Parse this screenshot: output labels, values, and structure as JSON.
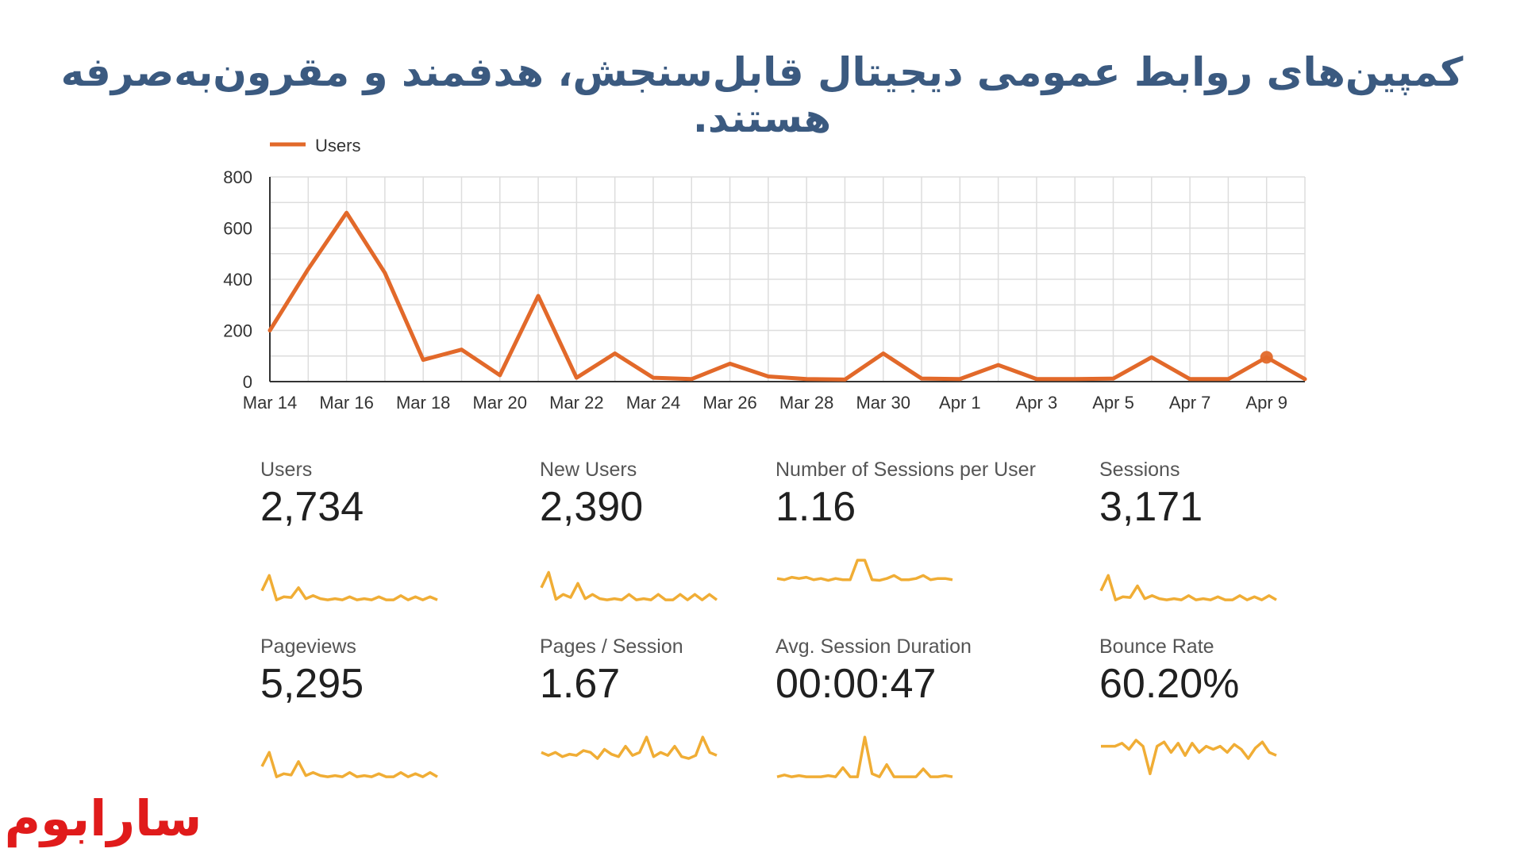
{
  "headline": "کمپین‌های روابط عمومی دیجیتال قابل‌سنجش، هدفمند و مقرون‌به‌صرفه هستند.",
  "logo": {
    "text": "سارابوم",
    "color": "#e01b1b"
  },
  "colors": {
    "line": "#e2692a",
    "sparkline": "#f0ad35",
    "headline": "#3b5a80",
    "grid": "#dddddd",
    "axis": "#333333"
  },
  "chart_data": {
    "type": "line",
    "legend": {
      "position": "top-left",
      "entries": [
        "Users"
      ]
    },
    "grid": true,
    "ylim": [
      0,
      800
    ],
    "yticks": [
      0,
      200,
      400,
      600,
      800
    ],
    "x": [
      "Mar 14",
      "Mar 15",
      "Mar 16",
      "Mar 17",
      "Mar 18",
      "Mar 19",
      "Mar 20",
      "Mar 21",
      "Mar 22",
      "Mar 23",
      "Mar 24",
      "Mar 25",
      "Mar 26",
      "Mar 27",
      "Mar 28",
      "Mar 29",
      "Mar 30",
      "Mar 31",
      "Apr 1",
      "Apr 2",
      "Apr 3",
      "Apr 4",
      "Apr 5",
      "Apr 6",
      "Apr 7",
      "Apr 8",
      "Apr 9",
      "Apr 10"
    ],
    "xtick_labels": [
      "Mar 14",
      "Mar 16",
      "Mar 18",
      "Mar 20",
      "Mar 22",
      "Mar 24",
      "Mar 26",
      "Mar 28",
      "Mar 30",
      "Apr 1",
      "Apr 3",
      "Apr 5",
      "Apr 7",
      "Apr 9"
    ],
    "series": [
      {
        "name": "Users",
        "values": [
          200,
          440,
          660,
          425,
          85,
          125,
          25,
          335,
          15,
          110,
          15,
          10,
          70,
          20,
          10,
          8,
          110,
          12,
          10,
          65,
          10,
          10,
          12,
          95,
          10,
          10,
          95,
          10
        ]
      }
    ],
    "highlight_point": {
      "x": "Apr 9",
      "y": 95
    }
  },
  "metrics": [
    {
      "label": "Users",
      "value": "2,734",
      "spark": [
        0.8,
        0.55,
        0.95,
        0.9,
        0.91,
        0.75,
        0.93,
        0.88,
        0.93,
        0.95,
        0.93,
        0.95,
        0.9,
        0.95,
        0.93,
        0.95,
        0.9,
        0.95,
        0.95,
        0.88,
        0.95,
        0.9,
        0.95,
        0.9,
        0.95
      ]
    },
    {
      "label": "New Users",
      "value": "2,390",
      "spark": [
        0.75,
        0.5,
        0.94,
        0.86,
        0.91,
        0.68,
        0.93,
        0.86,
        0.93,
        0.95,
        0.93,
        0.95,
        0.86,
        0.95,
        0.93,
        0.95,
        0.86,
        0.95,
        0.95,
        0.86,
        0.95,
        0.86,
        0.95,
        0.86,
        0.95
      ]
    },
    {
      "label": "Number of Sessions per User",
      "value": "1.16",
      "spark": [
        0.6,
        0.62,
        0.58,
        0.6,
        0.58,
        0.62,
        0.6,
        0.63,
        0.6,
        0.62,
        0.62,
        0.3,
        0.3,
        0.62,
        0.63,
        0.6,
        0.55,
        0.62,
        0.62,
        0.6,
        0.55,
        0.62,
        0.6,
        0.6,
        0.62
      ]
    },
    {
      "label": "Sessions",
      "value": "3,171",
      "spark": [
        0.8,
        0.55,
        0.95,
        0.9,
        0.91,
        0.72,
        0.93,
        0.88,
        0.93,
        0.95,
        0.93,
        0.95,
        0.88,
        0.95,
        0.93,
        0.95,
        0.9,
        0.95,
        0.95,
        0.88,
        0.95,
        0.9,
        0.95,
        0.88,
        0.95
      ]
    },
    {
      "label": "Pageviews",
      "value": "5,295",
      "spark": [
        0.78,
        0.55,
        0.95,
        0.9,
        0.92,
        0.7,
        0.93,
        0.88,
        0.93,
        0.95,
        0.93,
        0.95,
        0.88,
        0.95,
        0.93,
        0.95,
        0.9,
        0.95,
        0.95,
        0.88,
        0.95,
        0.9,
        0.95,
        0.88,
        0.95
      ]
    },
    {
      "label": "Pages / Session",
      "value": "1.67",
      "spark": [
        0.55,
        0.6,
        0.55,
        0.62,
        0.58,
        0.6,
        0.52,
        0.55,
        0.65,
        0.5,
        0.58,
        0.62,
        0.45,
        0.6,
        0.55,
        0.3,
        0.62,
        0.55,
        0.6,
        0.45,
        0.62,
        0.65,
        0.6,
        0.3,
        0.55,
        0.6
      ]
    },
    {
      "label": "Avg. Session Duration",
      "value": "00:00:47",
      "spark": [
        0.95,
        0.92,
        0.95,
        0.93,
        0.95,
        0.95,
        0.95,
        0.93,
        0.95,
        0.8,
        0.95,
        0.95,
        0.3,
        0.9,
        0.95,
        0.75,
        0.95,
        0.95,
        0.95,
        0.95,
        0.82,
        0.95,
        0.95,
        0.93,
        0.95
      ]
    },
    {
      "label": "Bounce Rate",
      "value": "60.20%",
      "spark": [
        0.45,
        0.45,
        0.45,
        0.4,
        0.5,
        0.35,
        0.45,
        0.9,
        0.45,
        0.38,
        0.55,
        0.4,
        0.6,
        0.4,
        0.55,
        0.45,
        0.5,
        0.45,
        0.55,
        0.42,
        0.5,
        0.65,
        0.48,
        0.38,
        0.55,
        0.6
      ]
    }
  ]
}
